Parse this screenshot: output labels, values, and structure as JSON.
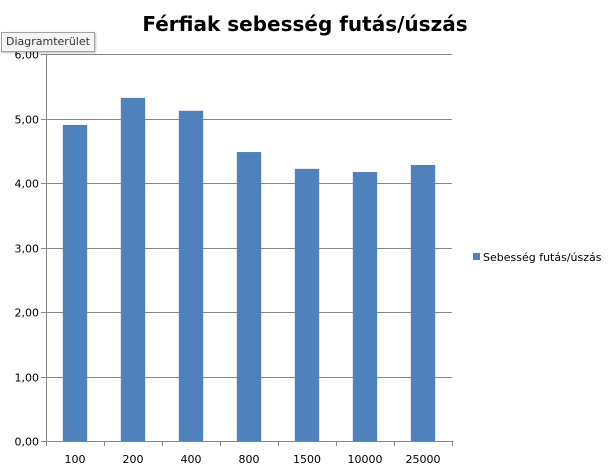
{
  "tooltip": "Diagramterület",
  "colors": {
    "bar": "#4f81bd",
    "grid": "#868686",
    "axis": "#868686",
    "text": "#000000"
  },
  "chart_data": {
    "type": "bar",
    "title": "Férfiak sebesség futás/úszás",
    "xlabel": "",
    "ylabel": "",
    "categories": [
      "100",
      "200",
      "400",
      "800",
      "1500",
      "10000",
      "25000"
    ],
    "series": [
      {
        "name": "Sebesség futás/úszás",
        "values": [
          4.9,
          5.32,
          5.12,
          4.48,
          4.22,
          4.17,
          4.28
        ]
      }
    ],
    "ylim": [
      0,
      6
    ],
    "yticks": [
      "0,00",
      "1,00",
      "2,00",
      "3,00",
      "4,00",
      "5,00",
      "6,00"
    ],
    "grid": true,
    "legend": "right"
  }
}
